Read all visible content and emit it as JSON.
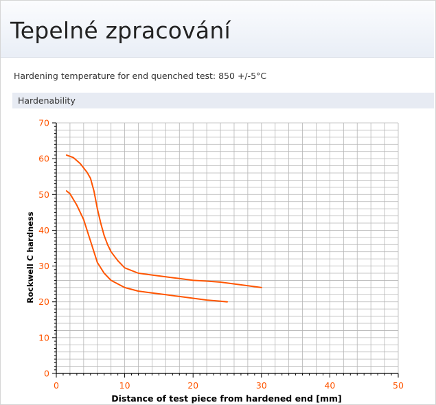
{
  "page": {
    "title": "Tepelné zpracování",
    "info_text": "Hardening temperature for end quenched test: 850 +/-5°C",
    "section_label": "Hardenability"
  },
  "colors": {
    "series": "#ff5500",
    "ticks": "#ff5500",
    "grid": "#b5b5b5",
    "header_bg": "#e9eef6",
    "section_bg": "#e7ebf3"
  },
  "chart_data": {
    "type": "line",
    "title": "",
    "xlabel": "Distance of test piece from hardened end [mm]",
    "ylabel": "Rockwell C hardness",
    "xlim": [
      0,
      50
    ],
    "ylim": [
      0,
      70
    ],
    "x_ticks": [
      0,
      10,
      20,
      30,
      40,
      50
    ],
    "y_ticks": [
      0,
      10,
      20,
      30,
      40,
      50,
      60,
      70
    ],
    "grid": true,
    "series": [
      {
        "points": [
          [
            1.5,
            61
          ],
          [
            2.5,
            60.3
          ],
          [
            3.5,
            58.6
          ],
          [
            4.5,
            56.2
          ],
          [
            5,
            54.5
          ],
          [
            5.5,
            51
          ],
          [
            6,
            46
          ],
          [
            6.5,
            42
          ],
          [
            7,
            38.5
          ],
          [
            7.5,
            36
          ],
          [
            8,
            34
          ],
          [
            9,
            31.5
          ],
          [
            10,
            29.5
          ],
          [
            12,
            28
          ],
          [
            14,
            27.5
          ],
          [
            16,
            27
          ],
          [
            18,
            26.5
          ],
          [
            20,
            26
          ],
          [
            22,
            25.8
          ],
          [
            24,
            25.5
          ],
          [
            26,
            25
          ],
          [
            28,
            24.5
          ],
          [
            30,
            24
          ]
        ]
      },
      {
        "points": [
          [
            1.5,
            51
          ],
          [
            2,
            50.2
          ],
          [
            3,
            47
          ],
          [
            4,
            43
          ],
          [
            4.5,
            40
          ],
          [
            5,
            37
          ],
          [
            5.5,
            34
          ],
          [
            6,
            31
          ],
          [
            7,
            28
          ],
          [
            8,
            26
          ],
          [
            9,
            25
          ],
          [
            10,
            24
          ],
          [
            12,
            23
          ],
          [
            14,
            22.5
          ],
          [
            16,
            22
          ],
          [
            18,
            21.5
          ],
          [
            20,
            21
          ],
          [
            22,
            20.5
          ],
          [
            24,
            20.2
          ],
          [
            25,
            20
          ]
        ]
      }
    ]
  }
}
